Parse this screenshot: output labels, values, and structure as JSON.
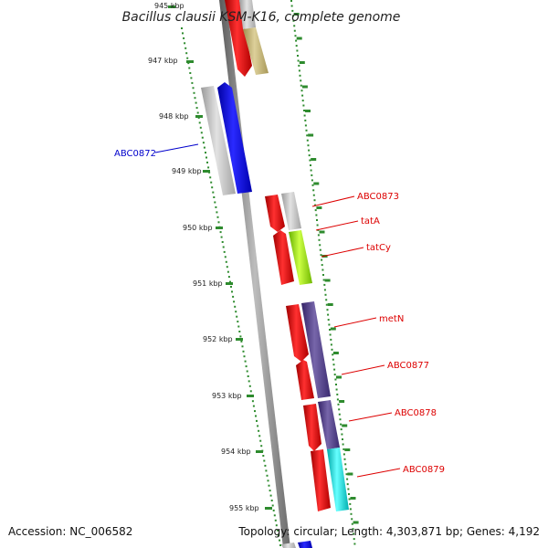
{
  "title": "Bacillus clausii KSM-K16, complete genome",
  "accession": "Accession: NC_006582",
  "summary": "Topology: circular; Length: 4,303,871 bp; Genes: 4,192",
  "colors": {
    "backbone": "#8a8a8a",
    "ruler": "#2e8b2e",
    "label_red": "#dd0000",
    "label_blue": "#0000cc",
    "gene_red": "#ff0000",
    "gene_blue": "#0000ff",
    "gene_grey": "#c0c0c0",
    "gene_olive": "#c8b878",
    "gene_lime": "#99ee22",
    "gene_purple": "#554488",
    "gene_cyan": "#00dddd"
  },
  "ticks": [
    "945 kbp",
    "947 kbp",
    "948 kbp",
    "949 kbp",
    "950 kbp",
    "951 kbp",
    "952 kbp",
    "953 kbp",
    "954 kbp",
    "955 kbp"
  ],
  "gene_labels": [
    "ABC0872",
    "ABC0873",
    "tatA",
    "tatCy",
    "metN",
    "ABC0877",
    "ABC0878",
    "ABC0879"
  ]
}
